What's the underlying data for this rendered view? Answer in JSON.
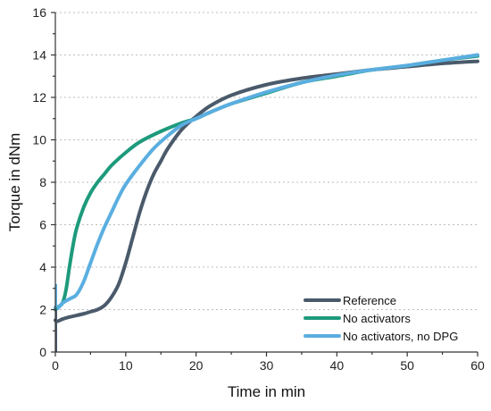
{
  "chart_data": {
    "type": "line",
    "xlabel": "Time in min",
    "ylabel": "Torque in dNm",
    "xlim": [
      0,
      60
    ],
    "ylim": [
      0,
      16
    ],
    "xticks": [
      0,
      10,
      20,
      30,
      40,
      50,
      60
    ],
    "yticks": [
      0,
      2,
      4,
      6,
      8,
      10,
      12,
      14,
      16
    ],
    "grid": "horizontal dotted",
    "legend_position": "bottom-right",
    "series": [
      {
        "name": "Reference",
        "color": "#4a5a6b",
        "x": [
          0,
          0.3,
          1,
          2,
          4,
          5,
          6,
          7,
          8,
          9,
          10,
          11,
          12,
          13,
          14,
          15,
          16,
          18,
          20,
          22,
          25,
          30,
          35,
          40,
          45,
          50,
          55,
          60
        ],
        "y": [
          1.5,
          1.45,
          1.55,
          1.65,
          1.8,
          1.9,
          2.0,
          2.2,
          2.6,
          3.2,
          4.2,
          5.4,
          6.6,
          7.6,
          8.4,
          9.0,
          9.6,
          10.5,
          11.1,
          11.6,
          12.1,
          12.6,
          12.9,
          13.1,
          13.3,
          13.45,
          13.6,
          13.7
        ]
      },
      {
        "name": "No activators",
        "color": "#1d9a7c",
        "x": [
          0,
          0.3,
          1,
          1.5,
          2,
          2.5,
          3,
          4,
          5,
          6,
          7,
          8,
          10,
          12,
          15,
          18,
          20,
          22,
          25,
          30,
          35,
          40,
          45,
          50,
          55,
          60
        ],
        "y": [
          2.0,
          2.1,
          2.3,
          2.9,
          4.0,
          5.0,
          5.8,
          6.8,
          7.5,
          8.0,
          8.4,
          8.8,
          9.4,
          9.9,
          10.4,
          10.8,
          11.0,
          11.3,
          11.7,
          12.2,
          12.7,
          13.0,
          13.3,
          13.5,
          13.75,
          13.95
        ]
      },
      {
        "name": "No activators, no DPG",
        "color": "#5aaee0",
        "x": [
          0,
          0.3,
          1,
          2,
          3,
          4,
          5,
          6,
          7,
          8,
          9,
          10,
          12,
          14,
          16,
          18,
          20,
          22,
          25,
          30,
          35,
          40,
          45,
          50,
          55,
          60
        ],
        "y": [
          2.1,
          2.05,
          2.3,
          2.5,
          2.7,
          3.3,
          4.2,
          5.1,
          5.9,
          6.6,
          7.3,
          7.9,
          8.8,
          9.6,
          10.2,
          10.7,
          11.0,
          11.3,
          11.7,
          12.25,
          12.7,
          13.05,
          13.3,
          13.5,
          13.75,
          14.0
        ]
      }
    ]
  }
}
